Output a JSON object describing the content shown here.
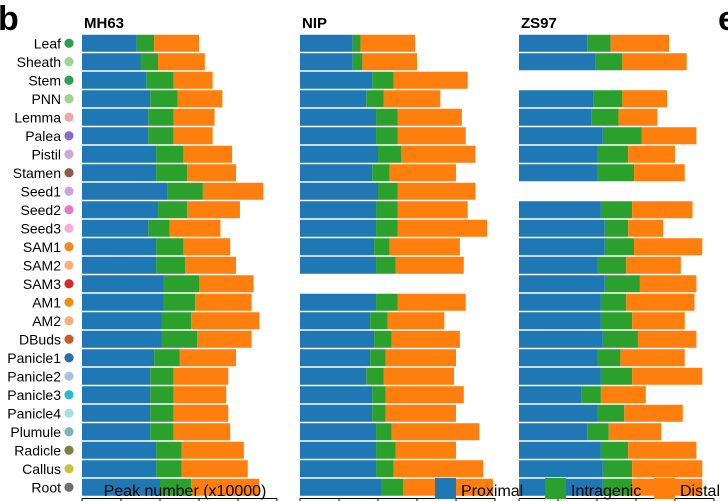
{
  "panel_letter": "b",
  "cut_letter": "e",
  "chart_data": {
    "type": "bar",
    "orientation": "horizontal",
    "stacked": true,
    "xlabel": "Peak number (x10000)",
    "xlim": [
      0,
      5
    ],
    "xticks": [
      "0",
      "1",
      "2",
      "3",
      "4",
      "5"
    ],
    "categories": [
      "Leaf",
      "Sheath",
      "Stem",
      "PNN",
      "Lemma",
      "Palea",
      "Pistil",
      "Stamen",
      "Seed1",
      "Seed2",
      "Seed3",
      "SAM1",
      "SAM2",
      "SAM3",
      "AM1",
      "AM2",
      "DBuds",
      "Panicle1",
      "Panicle2",
      "Panicle3",
      "Panicle4",
      "Plumule",
      "Radicle",
      "Callus",
      "Root"
    ],
    "category_colors": [
      "#2e9e4f",
      "#9ed48f",
      "#2e9e4f",
      "#9ed48f",
      "#f4a3a8",
      "#8b6cc4",
      "#c9a8d8",
      "#8b5a4a",
      "#c9a8d8",
      "#e27ac4",
      "#f2b0d4",
      "#f28a1a",
      "#f5b07a",
      "#d62728",
      "#f28a1a",
      "#f5b07a",
      "#c65d28",
      "#2a6ea8",
      "#a9c2e3",
      "#27bcc7",
      "#a7dde6",
      "#7fb3b0",
      "#7a8040",
      "#c9c23a",
      "#707070"
    ],
    "legend": [
      "Proximal",
      "Intragenic",
      "Distal"
    ],
    "series_colors": [
      "#1f77b4",
      "#2ca02c",
      "#ff7f0e"
    ],
    "panels": [
      {
        "title": "MH63",
        "proximal": [
          1.4,
          1.5,
          1.65,
          1.75,
          1.7,
          1.7,
          1.9,
          1.9,
          2.2,
          1.95,
          1.7,
          1.9,
          1.9,
          2.1,
          2.1,
          2.05,
          2.05,
          1.85,
          1.75,
          1.75,
          1.75,
          1.75,
          1.9,
          1.9,
          2.0
        ],
        "intragenic": [
          0.45,
          0.45,
          0.7,
          0.7,
          0.65,
          0.65,
          0.7,
          0.8,
          0.9,
          0.75,
          0.55,
          0.7,
          0.75,
          0.9,
          0.8,
          0.75,
          0.9,
          0.65,
          0.6,
          0.6,
          0.6,
          0.6,
          0.65,
          0.65,
          0.8
        ],
        "distal": [
          1.15,
          1.2,
          1.0,
          1.15,
          1.05,
          1.0,
          1.25,
          1.25,
          1.55,
          1.35,
          1.3,
          1.2,
          1.3,
          1.4,
          1.45,
          1.75,
          1.4,
          1.45,
          1.4,
          1.35,
          1.4,
          1.45,
          1.6,
          1.7,
          1.75
        ]
      },
      {
        "title": "NIP",
        "proximal": [
          1.35,
          1.35,
          1.85,
          1.7,
          1.95,
          1.95,
          2.0,
          1.85,
          2.0,
          1.95,
          1.95,
          1.9,
          1.95,
          null,
          1.95,
          1.8,
          1.9,
          1.8,
          1.7,
          1.85,
          1.85,
          1.95,
          1.95,
          1.95,
          2.1
        ],
        "intragenic": [
          0.2,
          0.25,
          0.55,
          0.45,
          0.55,
          0.55,
          0.6,
          0.45,
          0.5,
          0.55,
          0.55,
          0.4,
          0.5,
          null,
          0.55,
          0.45,
          0.45,
          0.4,
          0.45,
          0.35,
          0.35,
          0.4,
          0.5,
          0.45,
          0.55
        ],
        "distal": [
          1.4,
          1.4,
          1.9,
          1.45,
          1.65,
          1.75,
          1.9,
          1.7,
          2.0,
          1.8,
          2.3,
          1.8,
          1.75,
          null,
          1.75,
          1.45,
          1.75,
          1.8,
          1.8,
          2.0,
          1.8,
          2.25,
          1.55,
          2.3,
          2.3
        ]
      },
      {
        "title": "ZS97",
        "proximal": [
          1.75,
          1.95,
          null,
          1.9,
          1.85,
          2.15,
          2.0,
          2.0,
          null,
          2.1,
          2.2,
          2.2,
          2.0,
          2.2,
          2.1,
          2.1,
          2.15,
          2.0,
          2.1,
          1.6,
          2.0,
          1.75,
          2.1,
          2.15,
          2.15
        ],
        "intragenic": [
          0.6,
          0.7,
          null,
          0.75,
          0.7,
          1.0,
          0.8,
          0.95,
          null,
          0.8,
          0.6,
          0.75,
          0.75,
          0.9,
          0.65,
          0.8,
          0.9,
          0.6,
          0.8,
          0.5,
          0.7,
          0.55,
          0.7,
          0.75,
          0.75
        ],
        "distal": [
          1.5,
          1.65,
          null,
          1.15,
          1.0,
          1.4,
          1.2,
          1.3,
          null,
          1.55,
          0.9,
          1.75,
          1.4,
          1.45,
          1.75,
          1.35,
          1.5,
          1.65,
          1.8,
          1.15,
          1.5,
          1.35,
          1.75,
          1.8,
          1.8
        ]
      }
    ]
  }
}
